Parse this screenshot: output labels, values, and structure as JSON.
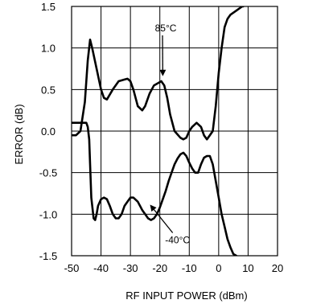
{
  "chart_data": {
    "type": "line",
    "title": "",
    "xlabel": "RF INPUT POWER (dBm)",
    "ylabel": "ERROR (dB)",
    "xlim": [
      -50,
      20
    ],
    "ylim": [
      -1.5,
      1.5
    ],
    "xticks": [
      -50,
      -40,
      -30,
      -20,
      -10,
      0,
      10,
      20
    ],
    "yticks": [
      -1.5,
      -1.0,
      -0.5,
      0.0,
      0.5,
      1.0,
      1.5
    ],
    "xtick_labels": [
      "-50",
      "-40",
      "-30",
      "-20",
      "-10",
      "0",
      "10",
      "20"
    ],
    "ytick_labels": [
      "-1.5",
      "-1.0",
      "-0.5",
      "0.0",
      "0.5",
      "1.0",
      "1.5"
    ],
    "grid": true,
    "series": [
      {
        "name": "85°C",
        "x": [
          -50,
          -48.5,
          -47,
          -45.5,
          -44.5,
          -43.7,
          -43,
          -41.5,
          -40,
          -39,
          -38,
          -36,
          -34,
          -32,
          -31,
          -30,
          -29,
          -27.5,
          -26,
          -25,
          -23.5,
          -22,
          -20.5,
          -19.5,
          -18.5,
          -17.5,
          -16.5,
          -15,
          -13,
          -12,
          -11,
          -10,
          -9,
          -7.5,
          -6,
          -5,
          -4,
          -3,
          -2,
          -1,
          0,
          1,
          2,
          3,
          4,
          6,
          8,
          8.3
        ],
        "y": [
          -0.05,
          -0.05,
          0.0,
          0.35,
          0.85,
          1.1,
          1.0,
          0.75,
          0.5,
          0.4,
          0.38,
          0.5,
          0.6,
          0.62,
          0.63,
          0.6,
          0.5,
          0.3,
          0.25,
          0.3,
          0.45,
          0.55,
          0.58,
          0.6,
          0.55,
          0.4,
          0.2,
          0.0,
          -0.08,
          -0.1,
          -0.08,
          0.0,
          0.05,
          0.1,
          0.05,
          -0.05,
          -0.1,
          -0.05,
          0.0,
          0.3,
          0.7,
          1.0,
          1.25,
          1.35,
          1.4,
          1.45,
          1.5,
          1.5
        ],
        "color": "#000000"
      },
      {
        "name": "-40°C",
        "x": [
          -50,
          -48,
          -46,
          -45,
          -44.5,
          -44,
          -43.7,
          -43.3,
          -42.5,
          -42,
          -41.5,
          -41,
          -40,
          -39,
          -38,
          -37,
          -36,
          -35,
          -34,
          -33,
          -32,
          -31,
          -30,
          -29,
          -27.5,
          -26,
          -25,
          -24,
          -23,
          -22,
          -21,
          -20,
          -19,
          -18,
          -17,
          -16,
          -15,
          -14,
          -13,
          -12,
          -11,
          -10,
          -9,
          -8,
          -7,
          -6,
          -5,
          -4,
          -3,
          -2,
          -1,
          0,
          1,
          2,
          3,
          4,
          5,
          6
        ],
        "y": [
          0.1,
          0.1,
          0.1,
          0.1,
          0.05,
          -0.1,
          -0.4,
          -0.8,
          -1.05,
          -1.07,
          -1.0,
          -0.9,
          -0.82,
          -0.8,
          -0.82,
          -0.9,
          -1.0,
          -1.05,
          -1.05,
          -1.0,
          -0.9,
          -0.85,
          -0.8,
          -0.8,
          -0.85,
          -0.95,
          -1.0,
          -1.05,
          -1.07,
          -1.05,
          -1.0,
          -0.92,
          -0.82,
          -0.72,
          -0.6,
          -0.5,
          -0.4,
          -0.33,
          -0.28,
          -0.26,
          -0.3,
          -0.38,
          -0.45,
          -0.5,
          -0.5,
          -0.4,
          -0.32,
          -0.3,
          -0.3,
          -0.4,
          -0.6,
          -0.8,
          -1.0,
          -1.15,
          -1.3,
          -1.4,
          -1.48,
          -1.5
        ],
        "color": "#000000"
      }
    ],
    "annotations": [
      {
        "text": "85°C",
        "x": -18,
        "y": 1.2,
        "arrow_to": [
          -19,
          0.68
        ]
      },
      {
        "text": "-40°C",
        "x": -14,
        "y": -1.35,
        "arrow_to": [
          -23,
          -0.9
        ]
      }
    ]
  }
}
